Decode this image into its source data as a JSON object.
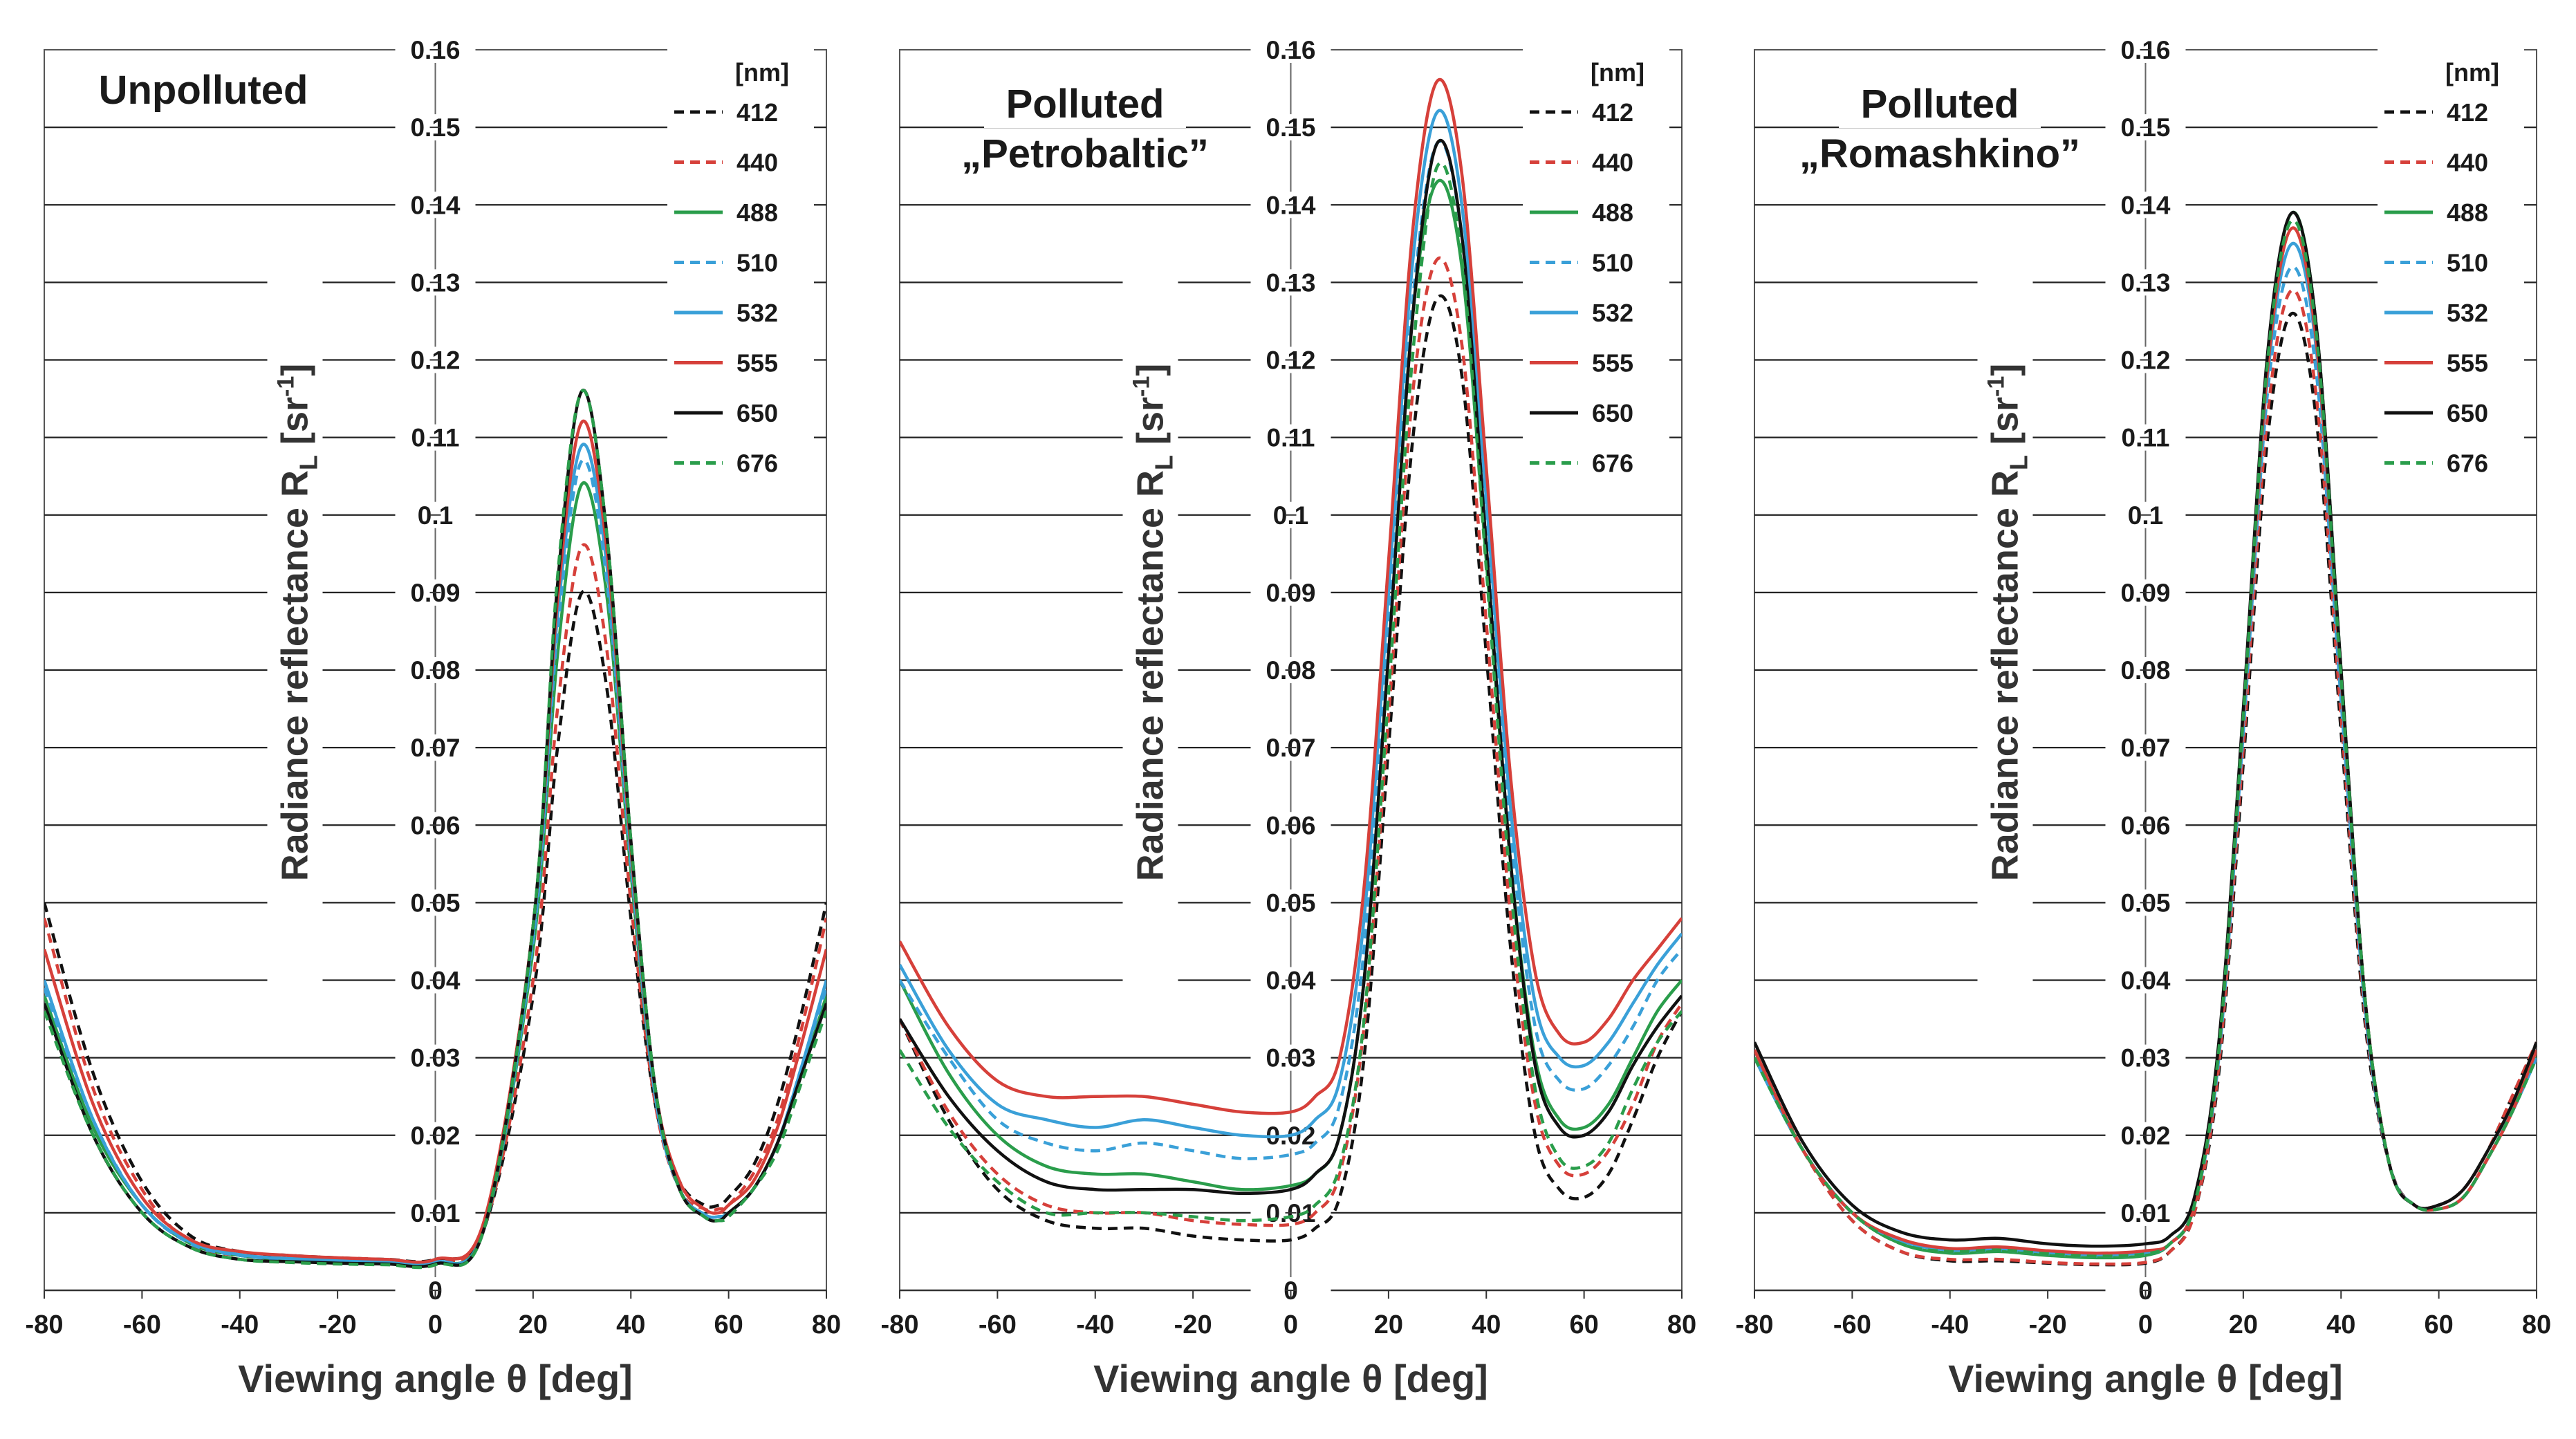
{
  "figure": {
    "legend_unit": "[nm]",
    "colors": {
      "412": "#111111",
      "440": "#d6403a",
      "488": "#2a9d4b",
      "510": "#3aa0d8",
      "532": "#3aa0d8",
      "555": "#d6403a",
      "650": "#111111",
      "676": "#2a9d4b"
    }
  },
  "chart_data": [
    {
      "type": "line",
      "title": "Unpolluted",
      "title_lines": [
        "Unpolluted"
      ],
      "xlabel": "Viewing angle  θ  [deg]",
      "ylabel": "Radiance reflectance",
      "ylabel_symbol": "R",
      "ylabel_sub": "L",
      "ylabel_unit": "[sr",
      "ylabel_unit_sup": "-1",
      "ylabel_unit_close": "]",
      "xlim": [
        -80,
        80
      ],
      "ylim": [
        0,
        0.16
      ],
      "x_ticks": [
        -80,
        -60,
        -40,
        -20,
        0,
        20,
        40,
        60,
        80
      ],
      "x_tick_labels": [
        "-80",
        "-60",
        "-40",
        "-20",
        "0",
        "20",
        "40",
        "60",
        "80"
      ],
      "y_ticks": [
        0,
        0.01,
        0.02,
        0.03,
        0.04,
        0.05,
        0.06,
        0.07,
        0.08,
        0.09,
        0.1,
        0.11,
        0.12,
        0.13,
        0.14,
        0.15,
        0.16
      ],
      "y_tick_labels": [
        "0",
        "0.01",
        "0.02",
        "0.03",
        "0.04",
        "0.05",
        "0.06",
        "0.07",
        "0.08",
        "0.09",
        "0.1",
        "0.11",
        "0.12",
        "0.13",
        "0.14",
        "0.15",
        "0.16"
      ],
      "grid": "horizontal",
      "legend_position": "top-right",
      "x": [
        -80,
        -70,
        -60,
        -50,
        -40,
        -30,
        -20,
        -10,
        0,
        10,
        20,
        25,
        30,
        35,
        40,
        45,
        50,
        55,
        58,
        60,
        65,
        70,
        75,
        80
      ],
      "series": [
        {
          "name": "412",
          "dash": true,
          "values": [
            0.05,
            0.028,
            0.014,
            0.007,
            0.005,
            0.0045,
            0.0042,
            0.004,
            0.004,
            0.008,
            0.038,
            0.07,
            0.09,
            0.078,
            0.048,
            0.024,
            0.014,
            0.011,
            0.011,
            0.012,
            0.016,
            0.024,
            0.036,
            0.05
          ]
        },
        {
          "name": "440",
          "dash": true,
          "values": [
            0.048,
            0.026,
            0.013,
            0.006,
            0.0045,
            0.0042,
            0.004,
            0.0038,
            0.0038,
            0.008,
            0.04,
            0.075,
            0.096,
            0.083,
            0.05,
            0.024,
            0.013,
            0.0105,
            0.0105,
            0.011,
            0.015,
            0.022,
            0.034,
            0.048
          ]
        },
        {
          "name": "488",
          "dash": false,
          "values": [
            0.038,
            0.021,
            0.011,
            0.006,
            0.0045,
            0.004,
            0.0038,
            0.0035,
            0.0035,
            0.008,
            0.044,
            0.082,
            0.104,
            0.09,
            0.054,
            0.025,
            0.013,
            0.0098,
            0.0095,
            0.01,
            0.013,
            0.019,
            0.028,
            0.038
          ]
        },
        {
          "name": "510",
          "dash": true,
          "values": [
            0.039,
            0.022,
            0.011,
            0.006,
            0.0045,
            0.004,
            0.0038,
            0.0035,
            0.0036,
            0.008,
            0.045,
            0.085,
            0.107,
            0.092,
            0.055,
            0.025,
            0.013,
            0.0098,
            0.0095,
            0.01,
            0.013,
            0.019,
            0.029,
            0.039
          ]
        },
        {
          "name": "532",
          "dash": false,
          "values": [
            0.04,
            0.022,
            0.011,
            0.0062,
            0.0046,
            0.0041,
            0.0039,
            0.0036,
            0.0036,
            0.008,
            0.046,
            0.087,
            0.109,
            0.094,
            0.056,
            0.025,
            0.013,
            0.0098,
            0.0095,
            0.01,
            0.013,
            0.019,
            0.029,
            0.04
          ]
        },
        {
          "name": "555",
          "dash": false,
          "values": [
            0.044,
            0.024,
            0.012,
            0.0065,
            0.005,
            0.0045,
            0.0042,
            0.004,
            0.004,
            0.009,
            0.047,
            0.089,
            0.112,
            0.096,
            0.057,
            0.026,
            0.014,
            0.0105,
            0.01,
            0.011,
            0.014,
            0.021,
            0.032,
            0.044
          ]
        },
        {
          "name": "650",
          "dash": false,
          "values": [
            0.037,
            0.02,
            0.01,
            0.0055,
            0.004,
            0.0037,
            0.0035,
            0.0034,
            0.0034,
            0.008,
            0.047,
            0.091,
            0.116,
            0.098,
            0.058,
            0.026,
            0.013,
            0.0095,
            0.009,
            0.01,
            0.013,
            0.019,
            0.028,
            0.037
          ]
        },
        {
          "name": "676",
          "dash": true,
          "values": [
            0.036,
            0.02,
            0.01,
            0.0055,
            0.004,
            0.0036,
            0.0034,
            0.0033,
            0.0033,
            0.008,
            0.047,
            0.092,
            0.116,
            0.098,
            0.058,
            0.026,
            0.013,
            0.0095,
            0.009,
            0.0095,
            0.013,
            0.018,
            0.027,
            0.036
          ]
        }
      ]
    },
    {
      "type": "line",
      "title": "Polluted „Petrobaltic”",
      "title_lines": [
        "Polluted",
        "„Petrobaltic”"
      ],
      "xlabel": "Viewing angle  θ  [deg]",
      "ylabel": "Radiance reflectance",
      "ylabel_symbol": "R",
      "ylabel_sub": "L",
      "ylabel_unit": "[sr",
      "ylabel_unit_sup": "-1",
      "ylabel_unit_close": "]",
      "xlim": [
        -80,
        80
      ],
      "ylim": [
        0,
        0.16
      ],
      "x_ticks": [
        -80,
        -60,
        -40,
        -20,
        0,
        20,
        40,
        60,
        80
      ],
      "x_tick_labels": [
        "-80",
        "-60",
        "-40",
        "-20",
        "0",
        "20",
        "40",
        "60",
        "80"
      ],
      "y_ticks": [
        0,
        0.01,
        0.02,
        0.03,
        0.04,
        0.05,
        0.06,
        0.07,
        0.08,
        0.09,
        0.1,
        0.11,
        0.12,
        0.13,
        0.14,
        0.15,
        0.16
      ],
      "y_tick_labels": [
        "0",
        "0.01",
        "0.02",
        "0.03",
        "0.04",
        "0.05",
        "0.06",
        "0.07",
        "0.08",
        "0.09",
        "0.1",
        "0.11",
        "0.12",
        "0.13",
        "0.14",
        "0.15",
        "0.16"
      ],
      "grid": "horizontal",
      "legend_position": "top-right",
      "x": [
        -80,
        -70,
        -60,
        -50,
        -40,
        -30,
        -20,
        -10,
        0,
        5,
        10,
        15,
        20,
        25,
        30,
        35,
        40,
        45,
        50,
        55,
        60,
        65,
        70,
        75,
        80
      ],
      "series": [
        {
          "name": "412",
          "dash": true,
          "values": [
            0.035,
            0.022,
            0.013,
            0.009,
            0.008,
            0.008,
            0.007,
            0.0065,
            0.0065,
            0.008,
            0.012,
            0.03,
            0.07,
            0.11,
            0.128,
            0.118,
            0.082,
            0.044,
            0.02,
            0.013,
            0.012,
            0.015,
            0.022,
            0.03,
            0.036
          ]
        },
        {
          "name": "440",
          "dash": true,
          "values": [
            0.035,
            0.023,
            0.015,
            0.011,
            0.01,
            0.01,
            0.009,
            0.0085,
            0.0085,
            0.01,
            0.015,
            0.034,
            0.074,
            0.116,
            0.133,
            0.122,
            0.086,
            0.048,
            0.024,
            0.016,
            0.015,
            0.018,
            0.024,
            0.032,
            0.037
          ]
        },
        {
          "name": "488",
          "dash": false,
          "values": [
            0.04,
            0.028,
            0.02,
            0.016,
            0.015,
            0.015,
            0.014,
            0.013,
            0.0135,
            0.015,
            0.02,
            0.04,
            0.082,
            0.126,
            0.143,
            0.132,
            0.094,
            0.055,
            0.03,
            0.022,
            0.021,
            0.024,
            0.03,
            0.036,
            0.04
          ]
        },
        {
          "name": "510",
          "dash": true,
          "values": [
            0.04,
            0.03,
            0.022,
            0.019,
            0.018,
            0.019,
            0.018,
            0.017,
            0.0175,
            0.019,
            0.024,
            0.044,
            0.086,
            0.128,
            0.148,
            0.136,
            0.098,
            0.059,
            0.034,
            0.027,
            0.026,
            0.029,
            0.034,
            0.04,
            0.044
          ]
        },
        {
          "name": "532",
          "dash": false,
          "values": [
            0.042,
            0.031,
            0.024,
            0.022,
            0.021,
            0.022,
            0.021,
            0.02,
            0.02,
            0.022,
            0.027,
            0.048,
            0.09,
            0.133,
            0.152,
            0.14,
            0.102,
            0.062,
            0.037,
            0.03,
            0.029,
            0.032,
            0.037,
            0.042,
            0.046
          ]
        },
        {
          "name": "555",
          "dash": false,
          "values": [
            0.045,
            0.034,
            0.027,
            0.025,
            0.025,
            0.025,
            0.024,
            0.023,
            0.023,
            0.025,
            0.03,
            0.052,
            0.094,
            0.137,
            0.156,
            0.144,
            0.106,
            0.066,
            0.041,
            0.033,
            0.032,
            0.035,
            0.04,
            0.044,
            0.048
          ]
        },
        {
          "name": "650",
          "dash": false,
          "values": [
            0.035,
            0.025,
            0.018,
            0.014,
            0.013,
            0.013,
            0.013,
            0.0125,
            0.013,
            0.015,
            0.02,
            0.04,
            0.082,
            0.126,
            0.148,
            0.136,
            0.096,
            0.055,
            0.029,
            0.021,
            0.02,
            0.023,
            0.029,
            0.034,
            0.038
          ]
        },
        {
          "name": "676",
          "dash": true,
          "values": [
            0.031,
            0.021,
            0.014,
            0.01,
            0.01,
            0.01,
            0.0095,
            0.009,
            0.0095,
            0.011,
            0.016,
            0.035,
            0.077,
            0.121,
            0.145,
            0.133,
            0.093,
            0.052,
            0.026,
            0.017,
            0.016,
            0.019,
            0.026,
            0.032,
            0.036
          ]
        }
      ]
    },
    {
      "type": "line",
      "title": "Polluted „Romashkino”",
      "title_lines": [
        "Polluted",
        "„Romashkino”"
      ],
      "xlabel": "Viewing angle  θ  [deg]",
      "ylabel": "Radiance reflectance",
      "ylabel_symbol": "R",
      "ylabel_sub": "L",
      "ylabel_unit": "[sr",
      "ylabel_unit_sup": "-1",
      "ylabel_unit_close": "]",
      "xlim": [
        -80,
        80
      ],
      "ylim": [
        0,
        0.16
      ],
      "x_ticks": [
        -80,
        -60,
        -40,
        -20,
        0,
        20,
        40,
        60,
        80
      ],
      "x_tick_labels": [
        "-80",
        "-60",
        "-40",
        "-20",
        "0",
        "20",
        "40",
        "60",
        "80"
      ],
      "y_ticks": [
        0,
        0.01,
        0.02,
        0.03,
        0.04,
        0.05,
        0.06,
        0.07,
        0.08,
        0.09,
        0.1,
        0.11,
        0.12,
        0.13,
        0.14,
        0.15,
        0.16
      ],
      "y_tick_labels": [
        "0",
        "0.01",
        "0.02",
        "0.03",
        "0.04",
        "0.05",
        "0.06",
        "0.07",
        "0.08",
        "0.09",
        "0.1",
        "0.11",
        "0.12",
        "0.13",
        "0.14",
        "0.15",
        "0.16"
      ],
      "grid": "horizontal",
      "legend_position": "top-right",
      "x": [
        -80,
        -70,
        -60,
        -50,
        -40,
        -30,
        -20,
        -10,
        0,
        5,
        10,
        15,
        20,
        25,
        30,
        35,
        40,
        45,
        50,
        55,
        60,
        65,
        70,
        75,
        80
      ],
      "series": [
        {
          "name": "412",
          "dash": true,
          "values": [
            0.031,
            0.018,
            0.009,
            0.005,
            0.0038,
            0.0038,
            0.0035,
            0.0033,
            0.0035,
            0.005,
            0.01,
            0.028,
            0.068,
            0.11,
            0.126,
            0.112,
            0.072,
            0.034,
            0.016,
            0.011,
            0.011,
            0.013,
            0.018,
            0.025,
            0.032
          ]
        },
        {
          "name": "440",
          "dash": true,
          "values": [
            0.031,
            0.018,
            0.009,
            0.005,
            0.004,
            0.004,
            0.0036,
            0.0034,
            0.0036,
            0.005,
            0.01,
            0.029,
            0.07,
            0.113,
            0.129,
            0.115,
            0.074,
            0.035,
            0.016,
            0.011,
            0.011,
            0.013,
            0.018,
            0.025,
            0.032
          ]
        },
        {
          "name": "488",
          "dash": false,
          "values": [
            0.03,
            0.018,
            0.01,
            0.006,
            0.0048,
            0.005,
            0.0045,
            0.0042,
            0.0045,
            0.006,
            0.011,
            0.031,
            0.074,
            0.12,
            0.139,
            0.124,
            0.08,
            0.037,
            0.016,
            0.011,
            0.0105,
            0.012,
            0.017,
            0.023,
            0.03
          ]
        },
        {
          "name": "510",
          "dash": true,
          "values": [
            0.03,
            0.018,
            0.01,
            0.0062,
            0.005,
            0.0052,
            0.0047,
            0.0044,
            0.0047,
            0.006,
            0.011,
            0.03,
            0.072,
            0.116,
            0.132,
            0.118,
            0.076,
            0.036,
            0.016,
            0.011,
            0.0105,
            0.012,
            0.017,
            0.023,
            0.03
          ]
        },
        {
          "name": "532",
          "dash": false,
          "values": [
            0.03,
            0.018,
            0.01,
            0.0064,
            0.0052,
            0.0054,
            0.0049,
            0.0046,
            0.0049,
            0.006,
            0.011,
            0.031,
            0.073,
            0.118,
            0.135,
            0.121,
            0.078,
            0.036,
            0.016,
            0.011,
            0.0105,
            0.012,
            0.017,
            0.023,
            0.03
          ]
        },
        {
          "name": "555",
          "dash": false,
          "values": [
            0.031,
            0.018,
            0.01,
            0.0066,
            0.0054,
            0.0056,
            0.0051,
            0.0048,
            0.0051,
            0.006,
            0.011,
            0.031,
            0.074,
            0.119,
            0.137,
            0.122,
            0.079,
            0.037,
            0.016,
            0.011,
            0.0105,
            0.012,
            0.017,
            0.023,
            0.031
          ]
        },
        {
          "name": "650",
          "dash": false,
          "values": [
            0.032,
            0.019,
            0.011,
            0.0075,
            0.0065,
            0.0067,
            0.006,
            0.0057,
            0.006,
            0.007,
            0.012,
            0.032,
            0.075,
            0.121,
            0.139,
            0.124,
            0.08,
            0.037,
            0.016,
            0.011,
            0.011,
            0.013,
            0.018,
            0.024,
            0.032
          ]
        },
        {
          "name": "676",
          "dash": true,
          "values": [
            0.03,
            0.018,
            0.01,
            0.006,
            0.005,
            0.0052,
            0.0047,
            0.0044,
            0.0047,
            0.006,
            0.011,
            0.031,
            0.074,
            0.12,
            0.138,
            0.123,
            0.079,
            0.037,
            0.016,
            0.011,
            0.0105,
            0.012,
            0.017,
            0.023,
            0.03
          ]
        }
      ]
    }
  ]
}
